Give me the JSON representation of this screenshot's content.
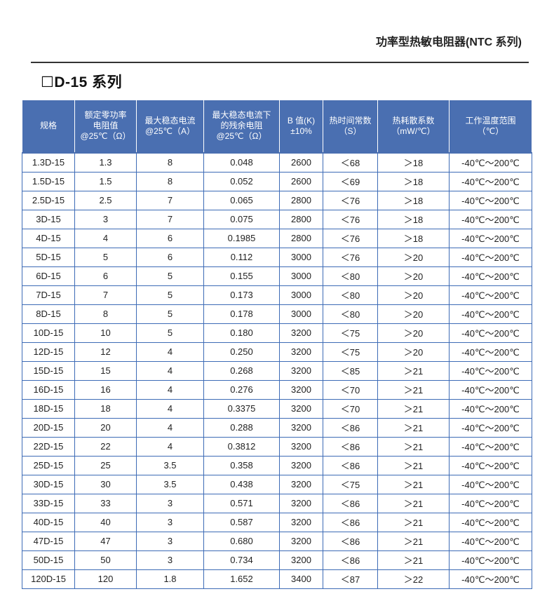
{
  "header": {
    "title": "功率型热敏电阻器(NTC 系列)"
  },
  "section": {
    "title": "☐D-15  系列"
  },
  "table": {
    "columns": [
      [
        "规格"
      ],
      [
        "额定零功率",
        "电阻值",
        "@25℃（Ω）"
      ],
      [
        "最大稳态电流",
        "@25℃（A）"
      ],
      [
        "最大稳态电流下",
        "的残余电阻",
        "@25℃（Ω）"
      ],
      [
        "B 值(K)",
        "±10%"
      ],
      [
        "热时间常数",
        "（S）"
      ],
      [
        "热耗散系数",
        "（mW/℃）"
      ],
      [
        "工作温度范围",
        "（℃）"
      ]
    ],
    "rows": [
      [
        "1.3D-15",
        "1.3",
        "8",
        "0.048",
        "2600",
        "＜68",
        "＞18",
        "-40℃～200℃"
      ],
      [
        "1.5D-15",
        "1.5",
        "8",
        "0.052",
        "2600",
        "＜69",
        "＞18",
        "-40℃～200℃"
      ],
      [
        "2.5D-15",
        "2.5",
        "7",
        "0.065",
        "2800",
        "＜76",
        "＞18",
        "-40℃～200℃"
      ],
      [
        "3D-15",
        "3",
        "7",
        "0.075",
        "2800",
        "＜76",
        "＞18",
        "-40℃～200℃"
      ],
      [
        "4D-15",
        "4",
        "6",
        "0.1985",
        "2800",
        "＜76",
        "＞18",
        "-40℃～200℃"
      ],
      [
        "5D-15",
        "5",
        "6",
        "0.112",
        "3000",
        "＜76",
        "＞20",
        "-40℃～200℃"
      ],
      [
        "6D-15",
        "6",
        "5",
        "0.155",
        "3000",
        "＜80",
        "＞20",
        "-40℃～200℃"
      ],
      [
        "7D-15",
        "7",
        "5",
        "0.173",
        "3000",
        "＜80",
        "＞20",
        "-40℃～200℃"
      ],
      [
        "8D-15",
        "8",
        "5",
        "0.178",
        "3000",
        "＜80",
        "＞20",
        "-40℃～200℃"
      ],
      [
        "10D-15",
        "10",
        "5",
        "0.180",
        "3200",
        "＜75",
        "＞20",
        "-40℃～200℃"
      ],
      [
        "12D-15",
        "12",
        "4",
        "0.250",
        "3200",
        "＜75",
        "＞20",
        "-40℃～200℃"
      ],
      [
        "15D-15",
        "15",
        "4",
        "0.268",
        "3200",
        "＜85",
        "＞21",
        "-40℃～200℃"
      ],
      [
        "16D-15",
        "16",
        "4",
        "0.276",
        "3200",
        "＜70",
        "＞21",
        "-40℃～200℃"
      ],
      [
        "18D-15",
        "18",
        "4",
        "0.3375",
        "3200",
        "＜70",
        "＞21",
        "-40℃～200℃"
      ],
      [
        "20D-15",
        "20",
        "4",
        "0.288",
        "3200",
        "＜86",
        "＞21",
        "-40℃～200℃"
      ],
      [
        "22D-15",
        "22",
        "4",
        "0.3812",
        "3200",
        "＜86",
        "＞21",
        "-40℃～200℃"
      ],
      [
        "25D-15",
        "25",
        "3.5",
        "0.358",
        "3200",
        "＜86",
        "＞21",
        "-40℃～200℃"
      ],
      [
        "30D-15",
        "30",
        "3.5",
        "0.438",
        "3200",
        "＜75",
        "＞21",
        "-40℃～200℃"
      ],
      [
        "33D-15",
        "33",
        "3",
        "0.571",
        "3200",
        "＜86",
        "＞21",
        "-40℃～200℃"
      ],
      [
        "40D-15",
        "40",
        "3",
        "0.587",
        "3200",
        "＜86",
        "＞21",
        "-40℃～200℃"
      ],
      [
        "47D-15",
        "47",
        "3",
        "0.680",
        "3200",
        "＜86",
        "＞21",
        "-40℃～200℃"
      ],
      [
        "50D-15",
        "50",
        "3",
        "0.734",
        "3200",
        "＜86",
        "＞21",
        "-40℃～200℃"
      ],
      [
        "120D-15",
        "120",
        "1.8",
        "1.652",
        "3400",
        "＜87",
        "＞22",
        "-40℃～200℃"
      ]
    ]
  },
  "colors": {
    "header_bg": "#4a6fb1",
    "grid": "#3d6bb6"
  }
}
